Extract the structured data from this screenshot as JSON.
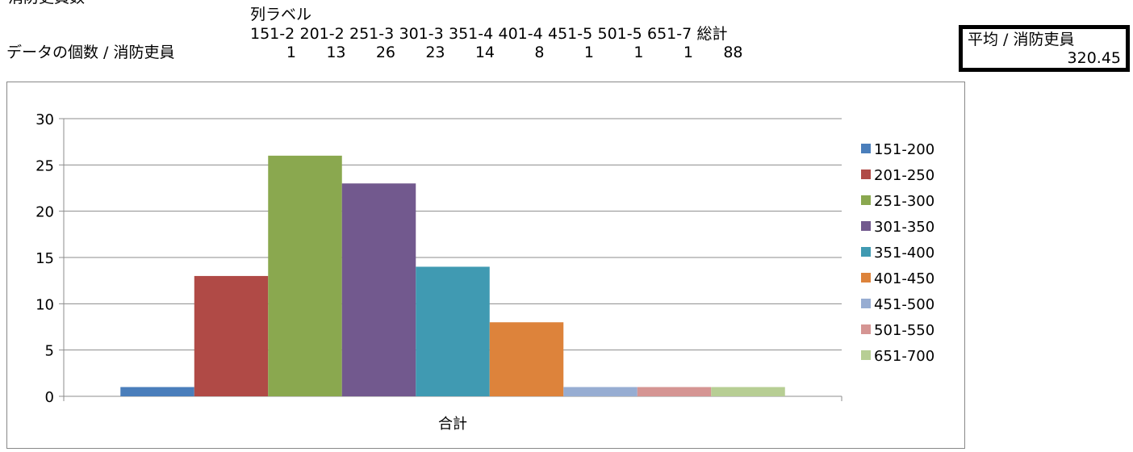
{
  "sheet": {
    "top_label": "消防吏員数",
    "column_labels_title": "列ラベル",
    "row_label": "データの個数 / 消防吏員",
    "column_headers": [
      "151-2",
      "201-2",
      "251-3",
      "301-3",
      "351-4",
      "401-4",
      "451-5",
      "501-5",
      "651-7",
      "総計"
    ],
    "counts": [
      "1",
      "13",
      "26",
      "23",
      "14",
      "8",
      "1",
      "1",
      "1",
      "88"
    ],
    "average_header": "平均 / 消防吏員",
    "average_value": "320.45"
  },
  "chart_data": {
    "type": "bar",
    "categories": [
      "合計"
    ],
    "series": [
      {
        "name": "151-200",
        "values": [
          1
        ],
        "color": "#4a7ebb"
      },
      {
        "name": "201-250",
        "values": [
          13
        ],
        "color": "#b04a46"
      },
      {
        "name": "251-300",
        "values": [
          26
        ],
        "color": "#8aa84f"
      },
      {
        "name": "301-350",
        "values": [
          23
        ],
        "color": "#72598e"
      },
      {
        "name": "351-400",
        "values": [
          14
        ],
        "color": "#409ab2"
      },
      {
        "name": "401-450",
        "values": [
          8
        ],
        "color": "#dd833b"
      },
      {
        "name": "451-500",
        "values": [
          1
        ],
        "color": "#97add2"
      },
      {
        "name": "501-550",
        "values": [
          1
        ],
        "color": "#d59593"
      },
      {
        "name": "651-700",
        "values": [
          1
        ],
        "color": "#b7ce94"
      }
    ],
    "xlabel": "",
    "ylabel": "",
    "ylim": [
      0,
      30
    ],
    "yticks": [
      0,
      5,
      10,
      15,
      20,
      25,
      30
    ],
    "grid": true,
    "legend": "right"
  }
}
